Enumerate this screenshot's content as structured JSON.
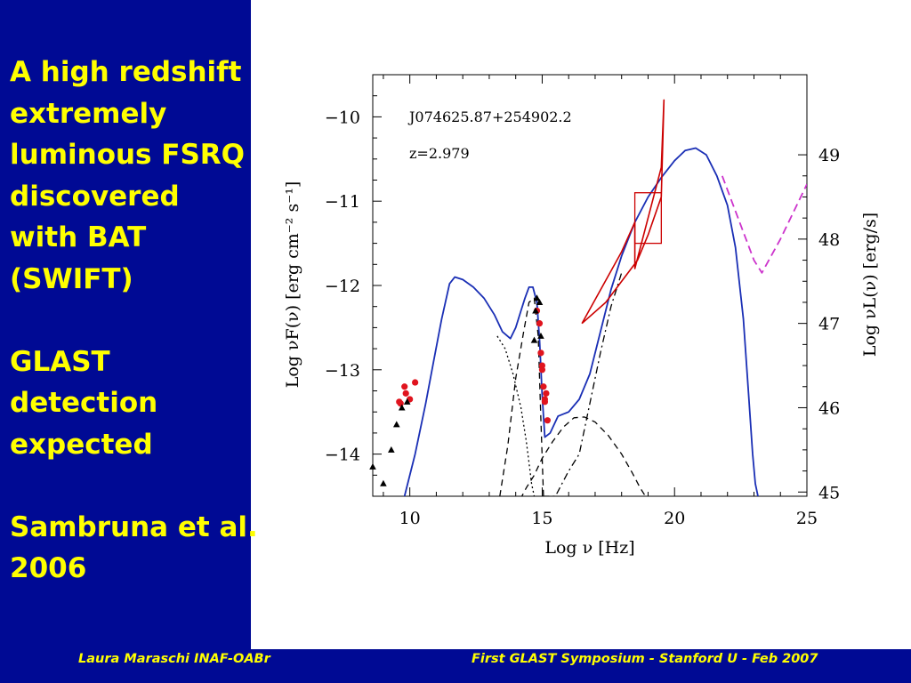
{
  "slide": {
    "title_lines": "A high redshift\nextremely\nluminous FSRQ\ndiscovered\nwith BAT\n(SWIFT)\n\nGLAST\ndetection\nexpected\n\nSambruna et al.\n2006",
    "footer_left": "Laura Maraschi INAF-OABr",
    "footer_right": "First GLAST Symposium - Stanford U - Feb 2007"
  },
  "colors": {
    "panel_bg": "#000a94",
    "text_yellow": "#ffff00",
    "model_blue": "#1a2fb5",
    "data_red": "#e0141e",
    "bat_red": "#cc0000",
    "glast_magenta": "#cc33cc",
    "black": "#000000"
  },
  "chart_data": {
    "type": "scatter",
    "source_name": "J074625.87+254902.2",
    "redshift_label": "z=2.979",
    "xlabel": "Log ν [Hz]",
    "ylabel": "Log νF(ν) [erg cm⁻² s⁻¹]",
    "y2label": "Log νL(ν) [erg/s]",
    "xlim": [
      8.6,
      25
    ],
    "ylim": [
      -14.5,
      -9.5
    ],
    "xticks": [
      10,
      15,
      20,
      25
    ],
    "yticks": [
      -14,
      -13,
      -12,
      -11,
      -10
    ],
    "y2ticks": [
      45,
      46,
      47,
      48,
      49
    ],
    "y2_values_at_ticks": [
      -14.45,
      -13.45,
      -12.45,
      -11.45,
      -10.45
    ],
    "series": [
      {
        "name": "",
        "role": "total model",
        "color": "#1a2fb5",
        "style": "solid",
        "x": [
          9.8,
          10.2,
          10.6,
          10.9,
          11.2,
          11.5,
          11.7,
          12.0,
          12.4,
          12.8,
          13.2,
          13.5,
          13.8,
          14.0,
          14.2,
          14.35,
          14.5,
          14.65,
          14.8,
          14.9,
          15.0,
          15.1,
          15.3,
          15.6,
          16.0,
          16.4,
          16.8,
          17.2,
          17.6,
          18.0,
          18.5,
          19.0,
          19.5,
          20.0,
          20.4,
          20.8,
          21.2,
          21.6,
          22.0,
          22.3,
          22.6,
          22.8,
          22.95,
          23.05,
          23.15
        ],
        "y": [
          -14.5,
          -14.0,
          -13.4,
          -12.9,
          -12.4,
          -11.98,
          -11.9,
          -11.93,
          -12.02,
          -12.15,
          -12.35,
          -12.55,
          -12.63,
          -12.5,
          -12.3,
          -12.15,
          -12.02,
          -12.02,
          -12.2,
          -12.65,
          -13.3,
          -13.8,
          -13.75,
          -13.55,
          -13.5,
          -13.35,
          -13.05,
          -12.55,
          -12.05,
          -11.65,
          -11.25,
          -10.95,
          -10.72,
          -10.52,
          -10.4,
          -10.37,
          -10.45,
          -10.7,
          -11.05,
          -11.55,
          -12.4,
          -13.3,
          -14.0,
          -14.35,
          -14.5
        ]
      },
      {
        "name": "",
        "role": "synchrotron",
        "color": "#000000",
        "style": "dotted",
        "x": [
          13.3,
          13.6,
          13.9,
          14.2,
          14.4,
          14.5,
          14.6,
          14.7
        ],
        "y": [
          -12.6,
          -12.75,
          -13.05,
          -13.45,
          -13.85,
          -14.1,
          -14.35,
          -14.5
        ]
      },
      {
        "name": "",
        "role": "accretion disk",
        "color": "#000000",
        "style": "dashed",
        "x": [
          13.4,
          13.7,
          14.0,
          14.3,
          14.5,
          14.7,
          14.85,
          14.95,
          15.05
        ],
        "y": [
          -14.5,
          -13.9,
          -13.1,
          -12.55,
          -12.2,
          -12.15,
          -12.6,
          -13.6,
          -14.5
        ]
      },
      {
        "name": "",
        "role": "corona X-ray",
        "color": "#000000",
        "style": "dashed",
        "x": [
          14.0,
          14.2,
          14.4,
          14.7,
          15.0,
          15.4,
          15.8,
          16.2,
          16.6,
          17.0,
          17.5,
          18.0,
          18.4,
          18.7,
          18.9
        ],
        "y": [
          -14.65,
          -14.52,
          -14.4,
          -14.25,
          -14.05,
          -13.85,
          -13.68,
          -13.57,
          -13.56,
          -13.62,
          -13.78,
          -14.0,
          -14.22,
          -14.4,
          -14.5
        ]
      },
      {
        "name": "",
        "role": "external Compton",
        "color": "#000000",
        "style": "dashdot",
        "x": [
          15.0,
          15.5,
          16.0,
          16.4,
          16.8,
          17.2,
          17.6,
          18.0
        ],
        "y": [
          -14.5,
          -14.5,
          -14.2,
          -14.0,
          -13.4,
          -12.8,
          -12.25,
          -11.85
        ]
      },
      {
        "name": "",
        "role": "GLAST sensitivity",
        "color": "#cc33cc",
        "style": "dashed",
        "x": [
          21.8,
          22.4,
          23.0,
          23.3,
          24.0,
          25.0
        ],
        "y": [
          -10.7,
          -11.2,
          -11.7,
          -11.85,
          -11.45,
          -10.8
        ]
      },
      {
        "name": "",
        "role": "BAT spectrum",
        "color": "#cc0000",
        "style": "box",
        "boxes": [
          {
            "x": [
              18.5,
              19.5
            ],
            "y": [
              -11.5,
              -10.9
            ]
          }
        ],
        "bowtie": [
          [
            16.5,
            -12.45
          ],
          [
            18.0,
            -11.6
          ],
          [
            18.5,
            -11.25
          ],
          [
            18.5,
            -11.8
          ],
          [
            19.5,
            -10.6
          ],
          [
            19.6,
            -9.8
          ],
          [
            19.5,
            -10.95
          ],
          [
            19.0,
            -11.4
          ],
          [
            18.6,
            -11.7
          ],
          [
            17.4,
            -12.2
          ],
          [
            16.5,
            -12.45
          ]
        ]
      },
      {
        "name": "",
        "role": "simultaneous data",
        "color": "#e0141e",
        "marker": "circle",
        "x": [
          9.6,
          9.65,
          9.8,
          9.85,
          10.0,
          10.2,
          14.8,
          14.9,
          14.95,
          15.0,
          15.0,
          15.05,
          15.1,
          15.1,
          15.15,
          15.2
        ],
        "y": [
          -13.38,
          -13.4,
          -13.2,
          -13.28,
          -13.35,
          -13.15,
          -12.3,
          -12.45,
          -12.8,
          -12.95,
          -13.0,
          -13.2,
          -13.35,
          -13.38,
          -13.28,
          -13.6
        ]
      },
      {
        "name": "",
        "role": "archival data",
        "color": "#000000",
        "marker": "triangle",
        "x": [
          8.6,
          9.0,
          9.3,
          9.5,
          9.7,
          9.9,
          14.7,
          14.75,
          14.8,
          14.9,
          14.95
        ],
        "y": [
          -14.15,
          -14.35,
          -13.95,
          -13.65,
          -13.45,
          -13.38,
          -12.65,
          -12.3,
          -12.15,
          -12.2,
          -12.6
        ]
      }
    ]
  }
}
